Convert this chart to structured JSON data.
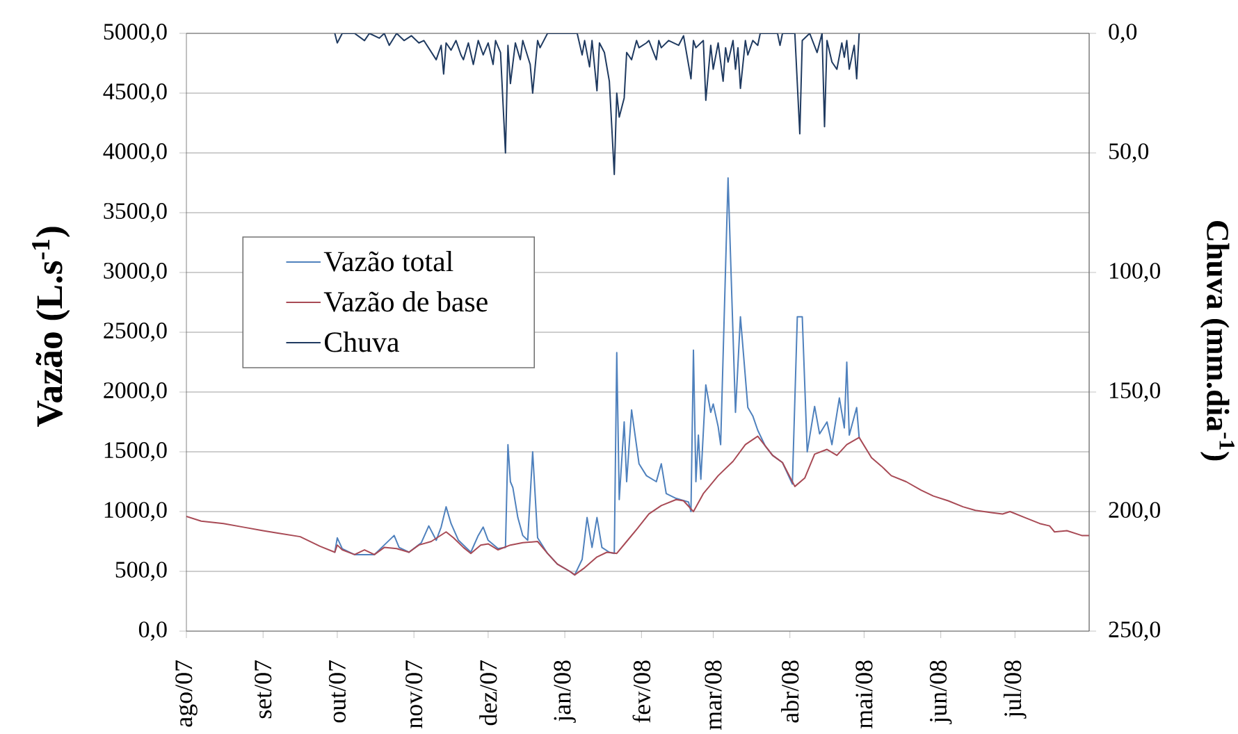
{
  "chart_data": {
    "type": "line",
    "ylabel": "Vazão (L.s$^{-1}$)",
    "y2label": "Chuva (mm.dia$^{-1}$)",
    "xlim": [
      "2007-08-01",
      "2008-07-31"
    ],
    "xticks": [
      {
        "value": "2007-08-01",
        "label": "ago/07"
      },
      {
        "value": "2007-09-01",
        "label": "set/07"
      },
      {
        "value": "2007-10-01",
        "label": "out/07"
      },
      {
        "value": "2007-11-01",
        "label": "nov/07"
      },
      {
        "value": "2007-12-01",
        "label": "dez/07"
      },
      {
        "value": "2008-01-01",
        "label": "jan/08"
      },
      {
        "value": "2008-02-01",
        "label": "fev/08"
      },
      {
        "value": "2008-03-01",
        "label": "mar/08"
      },
      {
        "value": "2008-04-01",
        "label": "abr/08"
      },
      {
        "value": "2008-05-01",
        "label": "mai/08"
      },
      {
        "value": "2008-06-01",
        "label": "jun/08"
      },
      {
        "value": "2008-07-01",
        "label": "jul/08"
      }
    ],
    "ylim": [
      0,
      5000
    ],
    "yticks": [
      {
        "value": 0,
        "label": "0,0"
      },
      {
        "value": 500,
        "label": "500,0"
      },
      {
        "value": 1000,
        "label": "1000,0"
      },
      {
        "value": 1500,
        "label": "1500,0"
      },
      {
        "value": 2000,
        "label": "2000,0"
      },
      {
        "value": 2500,
        "label": "2500,0"
      },
      {
        "value": 3000,
        "label": "3000,0"
      },
      {
        "value": 3500,
        "label": "3500,0"
      },
      {
        "value": 4000,
        "label": "4000,0"
      },
      {
        "value": 4500,
        "label": "4500,0"
      },
      {
        "value": 5000,
        "label": "5000,0"
      }
    ],
    "y2lim": [
      250,
      0
    ],
    "y2ticks": [
      {
        "value": 0,
        "label": "0,0"
      },
      {
        "value": 50,
        "label": "50,0"
      },
      {
        "value": 100,
        "label": "100,0"
      },
      {
        "value": 150,
        "label": "150,0"
      },
      {
        "value": 200,
        "label": "200,0"
      },
      {
        "value": 250,
        "label": "250,0"
      }
    ],
    "grid": "y",
    "legend": "left",
    "marker": "none",
    "series": [
      {
        "name": "Vazão total",
        "color": "#4f81bd",
        "x": [
          "2007-09-30",
          "2007-10-01",
          "2007-10-03",
          "2007-10-08",
          "2007-10-16",
          "2007-10-20",
          "2007-10-24",
          "2007-10-26",
          "2007-10-30",
          "2007-11-04",
          "2007-11-07",
          "2007-11-10",
          "2007-11-12",
          "2007-11-14",
          "2007-11-16",
          "2007-11-19",
          "2007-11-24",
          "2007-11-27",
          "2007-11-29",
          "2007-12-01",
          "2007-12-05",
          "2007-12-08",
          "2007-12-09",
          "2007-12-10",
          "2007-12-11",
          "2007-12-13",
          "2007-12-15",
          "2007-12-17",
          "2007-12-19",
          "2007-12-21",
          "2007-12-25",
          "2007-12-29",
          "2008-01-03",
          "2008-01-05",
          "2008-01-08",
          "2008-01-10",
          "2008-01-12",
          "2008-01-14",
          "2008-01-16",
          "2008-01-19",
          "2008-01-21",
          "2008-01-22",
          "2008-01-23",
          "2008-01-25",
          "2008-01-26",
          "2008-01-28",
          "2008-01-31",
          "2008-02-03",
          "2008-02-07",
          "2008-02-09",
          "2008-02-11",
          "2008-02-15",
          "2008-02-20",
          "2008-02-21",
          "2008-02-22",
          "2008-02-23",
          "2008-02-24",
          "2008-02-25",
          "2008-02-27",
          "2008-02-29",
          "2008-03-01",
          "2008-03-03",
          "2008-03-04",
          "2008-03-07",
          "2008-03-10",
          "2008-03-12",
          "2008-03-15",
          "2008-03-17",
          "2008-03-19",
          "2008-03-22",
          "2008-03-25",
          "2008-03-29",
          "2008-04-02",
          "2008-04-04",
          "2008-04-06",
          "2008-04-08",
          "2008-04-11",
          "2008-04-13",
          "2008-04-16",
          "2008-04-18",
          "2008-04-21",
          "2008-04-23",
          "2008-04-24",
          "2008-04-25",
          "2008-04-28",
          "2008-04-29"
        ],
        "values": [
          660,
          780,
          690,
          640,
          640,
          720,
          800,
          700,
          660,
          740,
          880,
          760,
          870,
          1040,
          900,
          760,
          660,
          800,
          870,
          760,
          690,
          700,
          1560,
          1250,
          1200,
          950,
          800,
          760,
          1500,
          780,
          650,
          560,
          500,
          470,
          600,
          950,
          700,
          950,
          700,
          660,
          650,
          2330,
          1100,
          1750,
          1250,
          1850,
          1400,
          1300,
          1250,
          1400,
          1150,
          1110,
          1080,
          1000,
          2350,
          1250,
          1640,
          1270,
          2060,
          1830,
          1900,
          1710,
          1560,
          3790,
          1830,
          2630,
          1870,
          1800,
          1680,
          1550,
          1470,
          1410,
          1230,
          2630,
          2630,
          1500,
          1880,
          1650,
          1750,
          1560,
          1950,
          1700,
          2250,
          1640,
          1870,
          1620
        ]
      },
      {
        "name": "Vazão de base",
        "color": "#a84a55",
        "x": [
          "2007-08-01",
          "2007-08-07",
          "2007-08-16",
          "2007-08-24",
          "2007-09-01",
          "2007-09-07",
          "2007-09-16",
          "2007-09-24",
          "2007-09-30",
          "2007-10-01",
          "2007-10-03",
          "2007-10-08",
          "2007-10-12",
          "2007-10-16",
          "2007-10-20",
          "2007-10-25",
          "2007-10-30",
          "2007-11-03",
          "2007-11-08",
          "2007-11-14",
          "2007-11-17",
          "2007-11-21",
          "2007-11-24",
          "2007-11-28",
          "2007-12-01",
          "2007-12-05",
          "2007-12-10",
          "2007-12-15",
          "2007-12-21",
          "2007-12-25",
          "2007-12-29",
          "2008-01-03",
          "2008-01-05",
          "2008-01-09",
          "2008-01-14",
          "2008-01-18",
          "2008-01-22",
          "2008-01-26",
          "2008-01-30",
          "2008-02-04",
          "2008-02-09",
          "2008-02-15",
          "2008-02-18",
          "2008-02-22",
          "2008-02-26",
          "2008-03-03",
          "2008-03-09",
          "2008-03-14",
          "2008-03-19",
          "2008-03-22",
          "2008-03-25",
          "2008-03-29",
          "2008-04-03",
          "2008-04-07",
          "2008-04-11",
          "2008-04-16",
          "2008-04-20",
          "2008-04-24",
          "2008-04-29",
          "2008-05-04",
          "2008-05-08",
          "2008-05-12",
          "2008-05-18",
          "2008-05-24",
          "2008-05-29",
          "2008-06-04",
          "2008-06-10",
          "2008-06-15",
          "2008-06-22",
          "2008-06-26",
          "2008-06-29",
          "2008-07-05",
          "2008-07-11",
          "2008-07-15",
          "2008-07-17",
          "2008-07-22",
          "2008-07-28",
          "2008-07-31"
        ],
        "values": [
          960,
          920,
          900,
          870,
          840,
          820,
          790,
          710,
          660,
          720,
          680,
          640,
          680,
          640,
          700,
          690,
          660,
          720,
          750,
          830,
          780,
          700,
          650,
          720,
          730,
          680,
          720,
          740,
          750,
          650,
          560,
          500,
          470,
          530,
          620,
          660,
          650,
          750,
          850,
          980,
          1050,
          1100,
          1090,
          1000,
          1150,
          1300,
          1420,
          1560,
          1630,
          1550,
          1470,
          1410,
          1210,
          1280,
          1480,
          1520,
          1470,
          1560,
          1620,
          1450,
          1380,
          1300,
          1250,
          1180,
          1130,
          1090,
          1040,
          1010,
          990,
          980,
          1000,
          950,
          900,
          880,
          830,
          840,
          800,
          800
        ]
      },
      {
        "name": "Chuva",
        "color": "#1f3a60",
        "axis": "y2",
        "x": [
          "2007-09-30",
          "2007-10-01",
          "2007-10-03",
          "2007-10-08",
          "2007-10-12",
          "2007-10-14",
          "2007-10-18",
          "2007-10-20",
          "2007-10-22",
          "2007-10-25",
          "2007-10-28",
          "2007-10-31",
          "2007-11-03",
          "2007-11-05",
          "2007-11-10",
          "2007-11-12",
          "2007-11-13",
          "2007-11-14",
          "2007-11-16",
          "2007-11-18",
          "2007-11-20",
          "2007-11-21",
          "2007-11-23",
          "2007-11-25",
          "2007-11-27",
          "2007-11-29",
          "2007-12-01",
          "2007-12-03",
          "2007-12-04",
          "2007-12-06",
          "2007-12-08",
          "2007-12-09",
          "2007-12-10",
          "2007-12-12",
          "2007-12-14",
          "2007-12-15",
          "2007-12-18",
          "2007-12-19",
          "2007-12-21",
          "2007-12-22",
          "2007-12-25",
          "2008-01-06",
          "2008-01-08",
          "2008-01-09",
          "2008-01-11",
          "2008-01-12",
          "2008-01-14",
          "2008-01-15",
          "2008-01-17",
          "2008-01-19",
          "2008-01-21",
          "2008-01-22",
          "2008-01-23",
          "2008-01-25",
          "2008-01-26",
          "2008-01-28",
          "2008-01-30",
          "2008-01-31",
          "2008-02-03",
          "2008-02-04",
          "2008-02-07",
          "2008-02-08",
          "2008-02-09",
          "2008-02-12",
          "2008-02-16",
          "2008-02-18",
          "2008-02-21",
          "2008-02-22",
          "2008-02-23",
          "2008-02-26",
          "2008-02-27",
          "2008-02-29",
          "2008-03-01",
          "2008-03-03",
          "2008-03-05",
          "2008-03-06",
          "2008-03-07",
          "2008-03-09",
          "2008-03-10",
          "2008-03-11",
          "2008-03-12",
          "2008-03-14",
          "2008-03-15",
          "2008-03-17",
          "2008-03-19",
          "2008-03-20",
          "2008-03-27",
          "2008-03-28",
          "2008-03-29",
          "2008-04-03",
          "2008-04-05",
          "2008-04-06",
          "2008-04-09",
          "2008-04-12",
          "2008-04-14",
          "2008-04-15",
          "2008-04-16",
          "2008-04-18",
          "2008-04-20",
          "2008-04-22",
          "2008-04-23",
          "2008-04-24",
          "2008-04-25",
          "2008-04-27",
          "2008-04-28",
          "2008-04-29"
        ],
        "values": [
          0,
          4,
          0,
          0,
          3,
          0,
          2,
          0,
          5,
          0,
          3,
          1,
          4,
          3,
          11,
          5,
          17,
          4,
          7,
          3,
          9,
          11,
          4,
          13,
          3,
          9,
          4,
          13,
          3,
          8,
          50,
          5,
          21,
          4,
          11,
          3,
          13,
          25,
          3,
          6,
          0,
          0,
          9,
          3,
          14,
          3,
          24,
          4,
          8,
          20,
          59,
          25,
          35,
          27,
          8,
          11,
          3,
          6,
          4,
          3,
          11,
          3,
          6,
          3,
          5,
          1,
          19,
          3,
          6,
          3,
          28,
          5,
          15,
          4,
          20,
          6,
          12,
          3,
          15,
          6,
          23,
          3,
          9,
          3,
          5,
          0,
          0,
          5,
          0,
          0,
          42,
          3,
          0,
          8,
          0,
          39,
          3,
          12,
          15,
          4,
          10,
          3,
          15,
          5,
          19,
          0
        ]
      }
    ]
  }
}
